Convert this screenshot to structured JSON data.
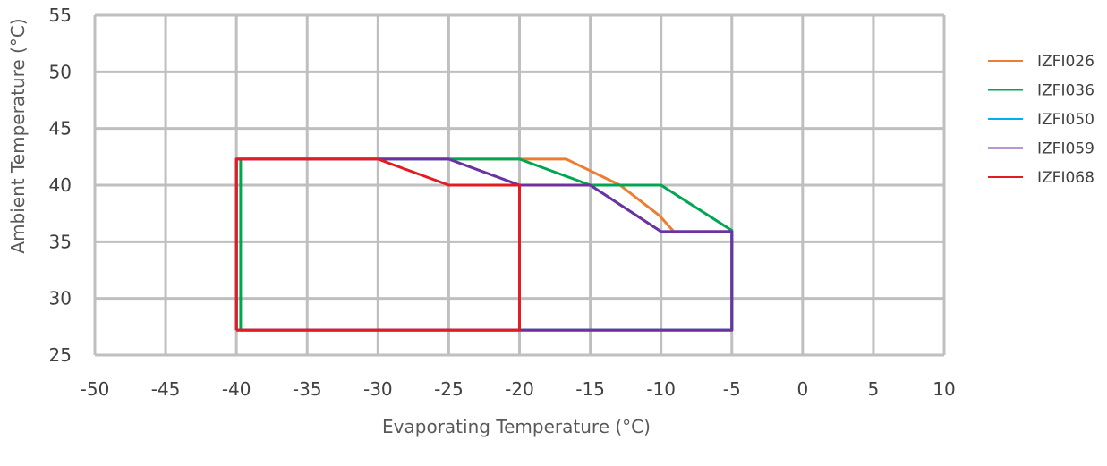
{
  "chart_data": {
    "type": "line",
    "title": "",
    "xlabel": "Evaporating Temperature (°C)",
    "ylabel": "Ambient Temperature (°C)",
    "xlim": [
      -50,
      10
    ],
    "ylim": [
      25,
      55
    ],
    "x_ticks": [
      -50,
      -45,
      -40,
      -35,
      -30,
      -25,
      -20,
      -15,
      -10,
      -5,
      0,
      5,
      10
    ],
    "y_ticks": [
      25,
      30,
      35,
      40,
      45,
      50,
      55
    ],
    "grid": true,
    "legend_position": "right",
    "series": [
      {
        "name": "IZFI026",
        "color": "#ED7D31",
        "points": [
          [
            -40,
            27.2
          ],
          [
            -40,
            42.3
          ],
          [
            -16.7,
            42.3
          ],
          [
            -12.9,
            40
          ],
          [
            -10.1,
            37.3
          ],
          [
            -9.1,
            35.9
          ],
          [
            -5,
            35.9
          ],
          [
            -5,
            27.2
          ],
          [
            -40,
            27.2
          ]
        ]
      },
      {
        "name": "IZFI036",
        "color": "#00A651",
        "points": [
          [
            -39.7,
            27.2
          ],
          [
            -39.7,
            42.3
          ],
          [
            -20,
            42.3
          ],
          [
            -15,
            40
          ],
          [
            -10,
            40
          ],
          [
            -5,
            36
          ],
          [
            -5,
            27.2
          ],
          [
            -39.7,
            27.2
          ]
        ]
      },
      {
        "name": "IZFI050",
        "color": "#00B0F0",
        "points": [
          [
            -40,
            27.2
          ],
          [
            -40,
            42.3
          ],
          [
            -25,
            42.3
          ],
          [
            -20,
            40
          ],
          [
            -15,
            40
          ],
          [
            -10,
            35.9
          ],
          [
            -5,
            35.9
          ],
          [
            -5,
            27.2
          ],
          [
            -40,
            27.2
          ]
        ]
      },
      {
        "name": "IZFI059",
        "color": "#7030A0",
        "points": [
          [
            -40,
            27.2
          ],
          [
            -40,
            42.3
          ],
          [
            -25,
            42.3
          ],
          [
            -20,
            40
          ],
          [
            -15,
            40
          ],
          [
            -10,
            35.9
          ],
          [
            -5,
            35.9
          ],
          [
            -5,
            27.2
          ],
          [
            -40,
            27.2
          ]
        ]
      },
      {
        "name": "IZFI068",
        "color": "#E31B23",
        "points": [
          [
            -40,
            27.2
          ],
          [
            -40,
            42.3
          ],
          [
            -30,
            42.3
          ],
          [
            -25,
            40
          ],
          [
            -20,
            40
          ],
          [
            -20,
            27.2
          ],
          [
            -40,
            27.2
          ]
        ]
      }
    ]
  }
}
